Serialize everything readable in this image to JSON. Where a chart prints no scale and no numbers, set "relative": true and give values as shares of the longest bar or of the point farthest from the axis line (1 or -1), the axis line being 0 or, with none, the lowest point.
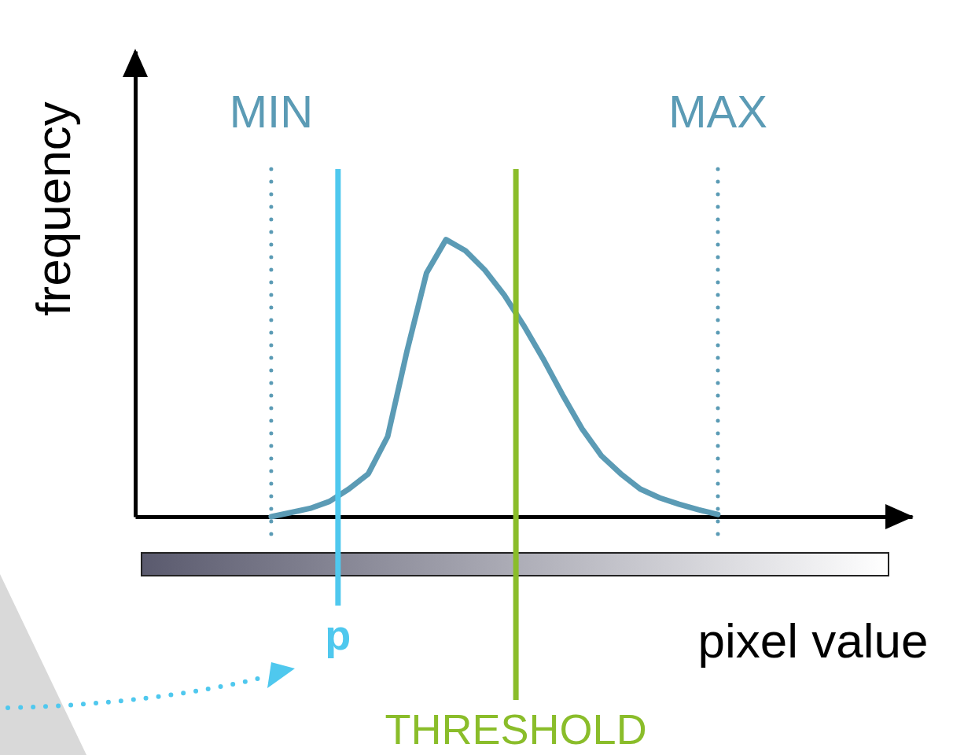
{
  "chart_data": {
    "type": "line",
    "xlabel": "pixel value",
    "ylabel": "frequency",
    "relative": true,
    "categories": [
      null,
      null,
      null,
      null,
      null,
      null,
      null,
      null,
      null,
      null,
      null,
      null,
      null,
      null,
      null,
      null,
      null,
      null,
      null,
      null,
      null,
      null,
      null,
      null,
      null,
      null,
      null,
      null,
      null,
      null,
      null,
      null,
      null,
      null,
      null,
      null,
      null,
      null,
      null,
      null,
      null
    ],
    "series": [
      {
        "color": "#5b9bb5",
        "values": [
          null,
          null,
          null,
          null,
          null,
          null,
          null,
          0,
          0.015,
          0.03,
          0.055,
          0.1,
          0.155,
          0.29,
          0.6,
          0.88,
          1,
          0.96,
          0.89,
          0.8,
          0.69,
          0.57,
          0.44,
          0.318,
          0.22,
          0.155,
          0.1,
          0.068,
          0.045,
          0.025,
          0.008,
          null,
          null,
          null,
          null,
          null,
          null,
          null,
          null,
          null,
          null
        ]
      }
    ],
    "annotations": [
      "MIN",
      "MAX",
      "p",
      "THRESHOLD"
    ]
  }
}
